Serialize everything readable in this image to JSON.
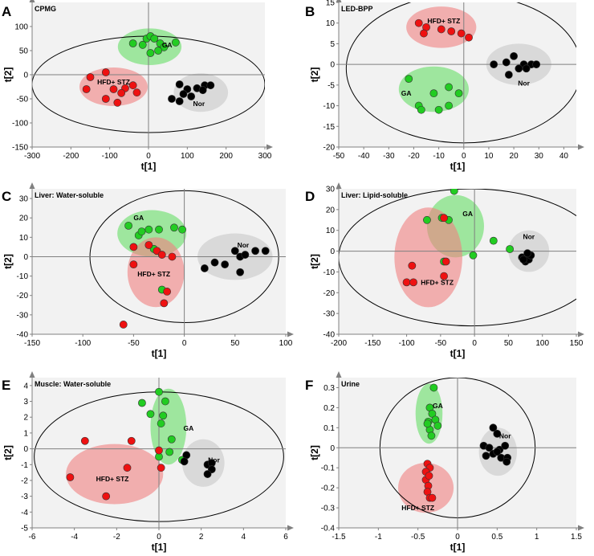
{
  "colors": {
    "plot_bg": "#f2f2f2",
    "axis_gray": "#808080",
    "green_fill": "#66dd66",
    "red_fill": "#f08080",
    "gray_fill": "#c8c8c8",
    "green_point": "#22cc22",
    "red_point": "#ee1111",
    "black_point": "#000000"
  },
  "chart_data": [
    {
      "type": "scatter",
      "letter": "A",
      "title": "CPMG",
      "xlabel": "t[1]",
      "ylabel": "t[2]",
      "xlim": [
        -300,
        300
      ],
      "ylim": [
        -150,
        150
      ],
      "xticks": [
        -300,
        -200,
        -100,
        0,
        100,
        200,
        300
      ],
      "yticks": [
        -150,
        -100,
        -50,
        0,
        50,
        100
      ],
      "ellipse": {
        "cx": 0,
        "cy": -20,
        "rx": 300,
        "ry": 100
      },
      "groups": [
        {
          "name": "GA",
          "label_at": [
            48,
            62
          ],
          "color": "green",
          "cloud": {
            "cx": 3,
            "cy": 58,
            "rx": 82,
            "ry": 38
          },
          "points": [
            [
              -40,
              65
            ],
            [
              -15,
              62
            ],
            [
              -5,
              75
            ],
            [
              5,
              80
            ],
            [
              15,
              75
            ],
            [
              30,
              65
            ],
            [
              40,
              57
            ],
            [
              70,
              67
            ],
            [
              5,
              45
            ],
            [
              25,
              50
            ]
          ]
        },
        {
          "name": "HFD+ STZ",
          "label_at": [
            -90,
            -15
          ],
          "color": "red",
          "cloud": {
            "cx": -90,
            "cy": -25,
            "rx": 88,
            "ry": 40
          },
          "points": [
            [
              -150,
              -5
            ],
            [
              -160,
              -30
            ],
            [
              -110,
              5
            ],
            [
              -90,
              -30
            ],
            [
              -60,
              -28
            ],
            [
              -40,
              -22
            ],
            [
              -30,
              -37
            ],
            [
              -70,
              -38
            ],
            [
              -110,
              -50
            ],
            [
              -80,
              -58
            ]
          ]
        },
        {
          "name": "Nor",
          "label_at": [
            130,
            -60
          ],
          "color": "black",
          "cloud": {
            "cx": 135,
            "cy": -37,
            "rx": 70,
            "ry": 40
          },
          "points": [
            [
              80,
              -20
            ],
            [
              100,
              -30
            ],
            [
              125,
              -28
            ],
            [
              145,
              -22
            ],
            [
              160,
              -22
            ],
            [
              90,
              -40
            ],
            [
              110,
              -45
            ],
            [
              80,
              -55
            ],
            [
              60,
              -50
            ],
            [
              140,
              -32
            ]
          ]
        }
      ]
    },
    {
      "type": "scatter",
      "letter": "B",
      "title": "LED-BPP",
      "xlabel": "t[1]",
      "ylabel": "t[2]",
      "xlim": [
        -50,
        45
      ],
      "ylim": [
        -20,
        15
      ],
      "xticks": [
        -50,
        -40,
        -30,
        -20,
        -10,
        0,
        10,
        20,
        30,
        40
      ],
      "yticks": [
        -20,
        -15,
        -10,
        -5,
        0,
        5,
        10,
        15
      ],
      "ellipse": {
        "cx": 0,
        "cy": -1,
        "rx": 47,
        "ry": 18
      },
      "groups": [
        {
          "name": "HFD+ STZ",
          "label_at": [
            -8,
            10.5
          ],
          "color": "red",
          "cloud": {
            "cx": -9,
            "cy": 9,
            "rx": 14,
            "ry": 5
          },
          "points": [
            [
              -18,
              10
            ],
            [
              -15,
              9
            ],
            [
              -16,
              7.5
            ],
            [
              -9,
              8.5
            ],
            [
              -5,
              8
            ],
            [
              -1,
              7.5
            ],
            [
              2,
              6.5
            ]
          ]
        },
        {
          "name": "GA",
          "label_at": [
            -23,
            -7
          ],
          "color": "green",
          "cloud": {
            "cx": -12,
            "cy": -6,
            "rx": 14,
            "ry": 5.5
          },
          "points": [
            [
              -22,
              -3.5
            ],
            [
              -18,
              -10
            ],
            [
              -17,
              -11
            ],
            [
              -12,
              -7
            ],
            [
              -6,
              -5.5
            ],
            [
              -2,
              -7
            ],
            [
              -10,
              -11
            ],
            [
              -6,
              -10
            ]
          ]
        },
        {
          "name": "Nor",
          "label_at": [
            24,
            -4.5
          ],
          "color": "black",
          "cloud": {
            "cx": 22,
            "cy": 0,
            "rx": 13,
            "ry": 5
          },
          "points": [
            [
              12,
              0
            ],
            [
              17,
              0.5
            ],
            [
              20,
              2
            ],
            [
              24,
              0
            ],
            [
              27,
              0
            ],
            [
              29,
              0
            ],
            [
              22,
              -1
            ],
            [
              25,
              -1
            ],
            [
              18,
              -2.5
            ]
          ]
        }
      ]
    },
    {
      "type": "scatter",
      "letter": "C",
      "title": "Liver: Water-soluble",
      "xlabel": "t[1]",
      "ylabel": "t[2]",
      "xlim": [
        -150,
        100
      ],
      "ylim": [
        -40,
        35
      ],
      "xticks": [
        -150,
        -100,
        -50,
        0,
        50,
        100
      ],
      "yticks": [
        -40,
        -30,
        -20,
        -10,
        0,
        10,
        20,
        30
      ],
      "ellipse": {
        "cx": 0,
        "cy": 0,
        "rx": 93,
        "ry": 34
      },
      "groups": [
        {
          "name": "GA",
          "label_at": [
            -45,
            20
          ],
          "color": "green",
          "cloud": {
            "cx": -32,
            "cy": 12,
            "rx": 34,
            "ry": 12
          },
          "points": [
            [
              -55,
              16
            ],
            [
              -45,
              11
            ],
            [
              -42,
              13
            ],
            [
              -35,
              14
            ],
            [
              -25,
              14
            ],
            [
              -10,
              15
            ],
            [
              -2,
              14
            ],
            [
              -30,
              4
            ],
            [
              -22,
              -17
            ]
          ]
        },
        {
          "name": "HFD+ STZ",
          "label_at": [
            -30,
            -9
          ],
          "color": "red",
          "cloud": {
            "cx": -28,
            "cy": -8,
            "rx": 28,
            "ry": 18
          },
          "points": [
            [
              -50,
              5
            ],
            [
              -35,
              6
            ],
            [
              -50,
              -4
            ],
            [
              -27,
              3
            ],
            [
              -22,
              1
            ],
            [
              -12,
              0
            ],
            [
              -17,
              -18
            ],
            [
              -20,
              -24
            ],
            [
              -60,
              -35
            ]
          ]
        },
        {
          "name": "Nor",
          "label_at": [
            58,
            6
          ],
          "color": "black",
          "cloud": {
            "cx": 50,
            "cy": 0,
            "rx": 37,
            "ry": 12
          },
          "points": [
            [
              20,
              -6
            ],
            [
              30,
              -3
            ],
            [
              40,
              -4
            ],
            [
              50,
              3
            ],
            [
              55,
              0
            ],
            [
              60,
              1
            ],
            [
              70,
              3
            ],
            [
              80,
              3
            ],
            [
              55,
              -8
            ]
          ]
        }
      ]
    },
    {
      "type": "scatter",
      "letter": "D",
      "title": "Liver: Lipid-soluble",
      "xlabel": "t[1]",
      "ylabel": "t[2]",
      "xlim": [
        -200,
        150
      ],
      "ylim": [
        -40,
        30
      ],
      "xticks": [
        -200,
        -150,
        -100,
        -50,
        0,
        50,
        100,
        150
      ],
      "yticks": [
        -40,
        -30,
        -20,
        -10,
        0,
        10,
        20,
        30
      ],
      "ellipse": {
        "cx": -5,
        "cy": -3,
        "rx": 195,
        "ry": 33
      },
      "groups": [
        {
          "name": "GA",
          "label_at": [
            -10,
            18
          ],
          "color": "green",
          "cloud": {
            "cx": -28,
            "cy": 12,
            "rx": 42,
            "ry": 15
          },
          "points": [
            [
              -70,
              15
            ],
            [
              -48,
              16
            ],
            [
              -38,
              15
            ],
            [
              -30,
              29
            ],
            [
              -45,
              -5
            ],
            [
              -2,
              -2
            ],
            [
              28,
              5
            ],
            [
              52,
              1
            ]
          ]
        },
        {
          "name": "HFD+ STZ",
          "label_at": [
            -55,
            -15
          ],
          "color": "red",
          "cloud": {
            "cx": -68,
            "cy": -3,
            "rx": 50,
            "ry": 24
          },
          "points": [
            [
              -92,
              -7
            ],
            [
              -100,
              -15
            ],
            [
              -90,
              -15
            ],
            [
              -45,
              -12
            ],
            [
              -45,
              16
            ],
            [
              -42,
              -5
            ]
          ]
        },
        {
          "name": "Nor",
          "label_at": [
            80,
            7
          ],
          "color": "black",
          "cloud": {
            "cx": 80,
            "cy": 0,
            "rx": 30,
            "ry": 10
          },
          "points": [
            [
              70,
              -3
            ],
            [
              75,
              -5
            ],
            [
              80,
              -4
            ],
            [
              83,
              -2
            ],
            [
              78,
              -1
            ],
            [
              72,
              -4
            ]
          ]
        }
      ]
    },
    {
      "type": "scatter",
      "letter": "E",
      "title": "Muscle: Water-soluble",
      "xlabel": "t[1]",
      "ylabel": "t[2]",
      "xlim": [
        -6,
        6
      ],
      "ylim": [
        -5,
        4.5
      ],
      "xticks": [
        -6,
        -4,
        -2,
        0,
        2,
        4,
        6
      ],
      "yticks": [
        -5,
        -4,
        -3,
        -2,
        -1,
        0,
        1,
        2,
        3,
        4
      ],
      "ellipse": {
        "cx": 0,
        "cy": -0.5,
        "rx": 5.9,
        "ry": 4.1
      },
      "groups": [
        {
          "name": "GA",
          "label_at": [
            1.4,
            1.3
          ],
          "color": "green",
          "cloud": {
            "cx": 0.45,
            "cy": 1.4,
            "rx": 0.85,
            "ry": 2.4
          },
          "points": [
            [
              -0.8,
              2.9
            ],
            [
              0,
              3.6
            ],
            [
              0.3,
              3.0
            ],
            [
              -0.4,
              2.2
            ],
            [
              0.2,
              2.1
            ],
            [
              0.1,
              1.6
            ],
            [
              0.6,
              0.6
            ],
            [
              0,
              -0.5
            ],
            [
              1.1,
              -0.7
            ],
            [
              0.5,
              -0.2
            ]
          ]
        },
        {
          "name": "HFD+ STZ",
          "label_at": [
            -2.2,
            -1.9
          ],
          "color": "red",
          "cloud": {
            "cx": -2.1,
            "cy": -1.6,
            "rx": 2.3,
            "ry": 1.9
          },
          "points": [
            [
              -3.5,
              0.5
            ],
            [
              -4.2,
              -1.8
            ],
            [
              -2.5,
              -3.0
            ],
            [
              -1.3,
              0.5
            ],
            [
              -1.5,
              -1.2
            ],
            [
              0.1,
              -1.2
            ],
            [
              0,
              -0.1
            ]
          ]
        },
        {
          "name": "Nor",
          "label_at": [
            2.6,
            -0.7
          ],
          "color": "black",
          "cloud": {
            "cx": 2.1,
            "cy": -0.9,
            "rx": 1.0,
            "ry": 1.5
          },
          "points": [
            [
              1.3,
              -0.4
            ],
            [
              1.2,
              -0.8
            ],
            [
              2.3,
              -1.0
            ],
            [
              2.5,
              -0.9
            ],
            [
              2.5,
              -1.3
            ],
            [
              2.3,
              -1.6
            ]
          ]
        }
      ]
    },
    {
      "type": "scatter",
      "letter": "F",
      "title": "Urine",
      "xlabel": "t[1]",
      "ylabel": "t[2]",
      "xlim": [
        -1.5,
        1.5
      ],
      "ylim": [
        -0.4,
        0.35
      ],
      "xticks": [
        -1.5,
        -1,
        -0.5,
        0,
        0.5,
        1,
        1.5
      ],
      "yticks": [
        -0.4,
        -0.3,
        -0.2,
        -0.1,
        0,
        0.1,
        0.2,
        0.3
      ],
      "ellipse": {
        "cx": 0,
        "cy": 0,
        "rx": 0.98,
        "ry": 0.35
      },
      "groups": [
        {
          "name": "GA",
          "label_at": [
            -0.25,
            0.21
          ],
          "color": "green",
          "cloud": {
            "cx": -0.36,
            "cy": 0.17,
            "rx": 0.17,
            "ry": 0.15
          },
          "points": [
            [
              -0.3,
              0.3
            ],
            [
              -0.35,
              0.2
            ],
            [
              -0.32,
              0.17
            ],
            [
              -0.28,
              0.14
            ],
            [
              -0.37,
              0.13
            ],
            [
              -0.35,
              0.09
            ],
            [
              -0.33,
              0.06
            ],
            [
              -0.38,
              0.12
            ],
            [
              -0.25,
              0.11
            ]
          ]
        },
        {
          "name": "HFD+ STZ",
          "label_at": [
            -0.5,
            -0.3
          ],
          "color": "red",
          "cloud": {
            "cx": -0.4,
            "cy": -0.2,
            "rx": 0.35,
            "ry": 0.125
          },
          "points": [
            [
              -0.38,
              -0.08
            ],
            [
              -0.35,
              -0.1
            ],
            [
              -0.4,
              -0.16
            ],
            [
              -0.37,
              -0.19
            ],
            [
              -0.38,
              -0.22
            ],
            [
              -0.35,
              -0.25
            ],
            [
              -0.32,
              -0.25
            ],
            [
              -0.4,
              -0.12
            ],
            [
              -0.36,
              -0.14
            ]
          ]
        },
        {
          "name": "Nor",
          "label_at": [
            0.6,
            0.06
          ],
          "color": "black",
          "cloud": {
            "cx": 0.51,
            "cy": -0.02,
            "rx": 0.24,
            "ry": 0.12
          },
          "points": [
            [
              0.33,
              0.01
            ],
            [
              0.36,
              -0.04
            ],
            [
              0.45,
              0.1
            ],
            [
              0.5,
              0.07
            ],
            [
              0.4,
              0
            ],
            [
              0.53,
              -0.01
            ],
            [
              0.6,
              0.01
            ],
            [
              0.55,
              -0.05
            ],
            [
              0.63,
              -0.05
            ],
            [
              0.62,
              -0.07
            ],
            [
              0.45,
              -0.03
            ],
            [
              0.5,
              -0.02
            ]
          ]
        }
      ]
    }
  ]
}
